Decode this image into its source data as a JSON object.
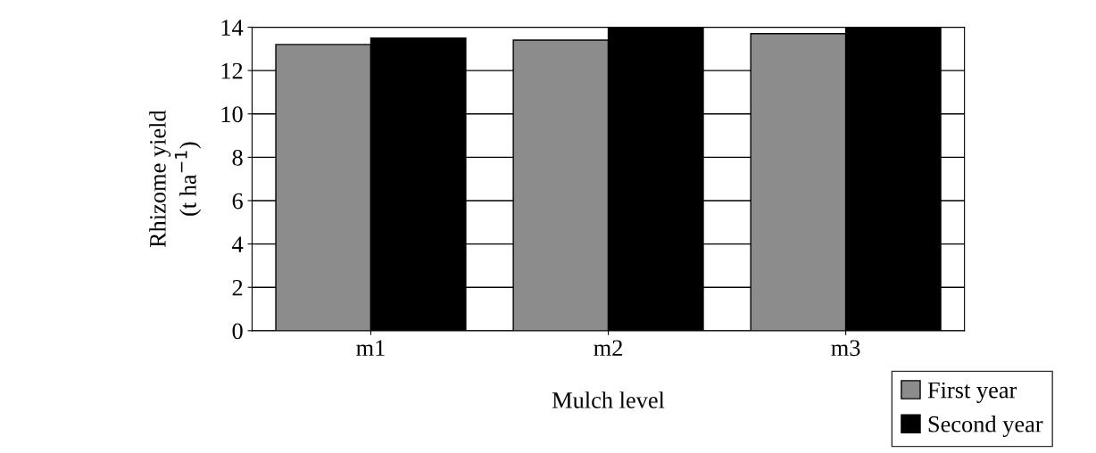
{
  "chart_data": {
    "type": "bar",
    "xlabel": "Mulch level",
    "ylabel": "Rhizome yield\n(t ha$^{−1}$)",
    "categories": [
      "m1",
      "m2",
      "m3"
    ],
    "series": [
      {
        "name": "First year",
        "color": "#8c8c8c",
        "values": [
          13.2,
          13.4,
          13.7
        ]
      },
      {
        "name": "Second year",
        "color": "#000000",
        "values": [
          13.5,
          14,
          14
        ]
      }
    ],
    "ylim": [
      0,
      14
    ],
    "yticks": [
      0,
      2,
      4,
      6,
      8,
      10,
      12,
      14
    ],
    "grid": "y",
    "legend": "bottom right"
  }
}
